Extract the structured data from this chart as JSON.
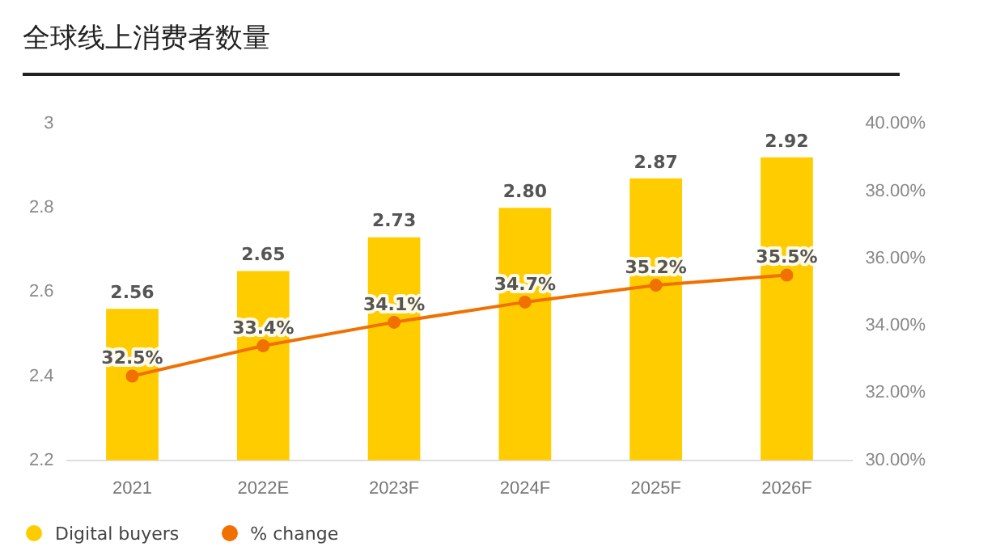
{
  "chart_data": {
    "type": "bar",
    "title": "全球线上消费者数量",
    "categories": [
      "2021",
      "2022E",
      "2023F",
      "2024F",
      "2025F",
      "2026F"
    ],
    "series": [
      {
        "name": "Digital buyers",
        "color": "#ffcc00",
        "values": [
          2.56,
          2.65,
          2.73,
          2.8,
          2.87,
          2.92
        ],
        "value_labels": [
          "2.56",
          "2.65",
          "2.73",
          "2.80",
          "2.87",
          "2.92"
        ]
      },
      {
        "name": "% change",
        "type": "line",
        "axis": "y2",
        "color": "#f07000",
        "values": [
          32.5,
          33.4,
          34.1,
          34.7,
          35.2,
          35.5
        ],
        "value_labels": [
          "32.5%",
          "33.4%",
          "34.1%",
          "34.7%",
          "35.2%",
          "35.5%"
        ]
      }
    ],
    "ylim": [
      2.2,
      3
    ],
    "yticks": [
      2.2,
      2.4,
      2.6,
      2.8,
      3
    ],
    "y2lim": [
      30,
      40
    ],
    "y2ticks": [
      {
        "value": 30,
        "label": "30.00%"
      },
      {
        "value": 32,
        "label": "32.00%"
      },
      {
        "value": 34,
        "label": "34.00%"
      },
      {
        "value": 36,
        "label": "36.00%"
      },
      {
        "value": 38,
        "label": "38.00%"
      },
      {
        "value": 40,
        "label": "40.00%"
      }
    ],
    "legend": "bottom left",
    "marker": "circle"
  }
}
